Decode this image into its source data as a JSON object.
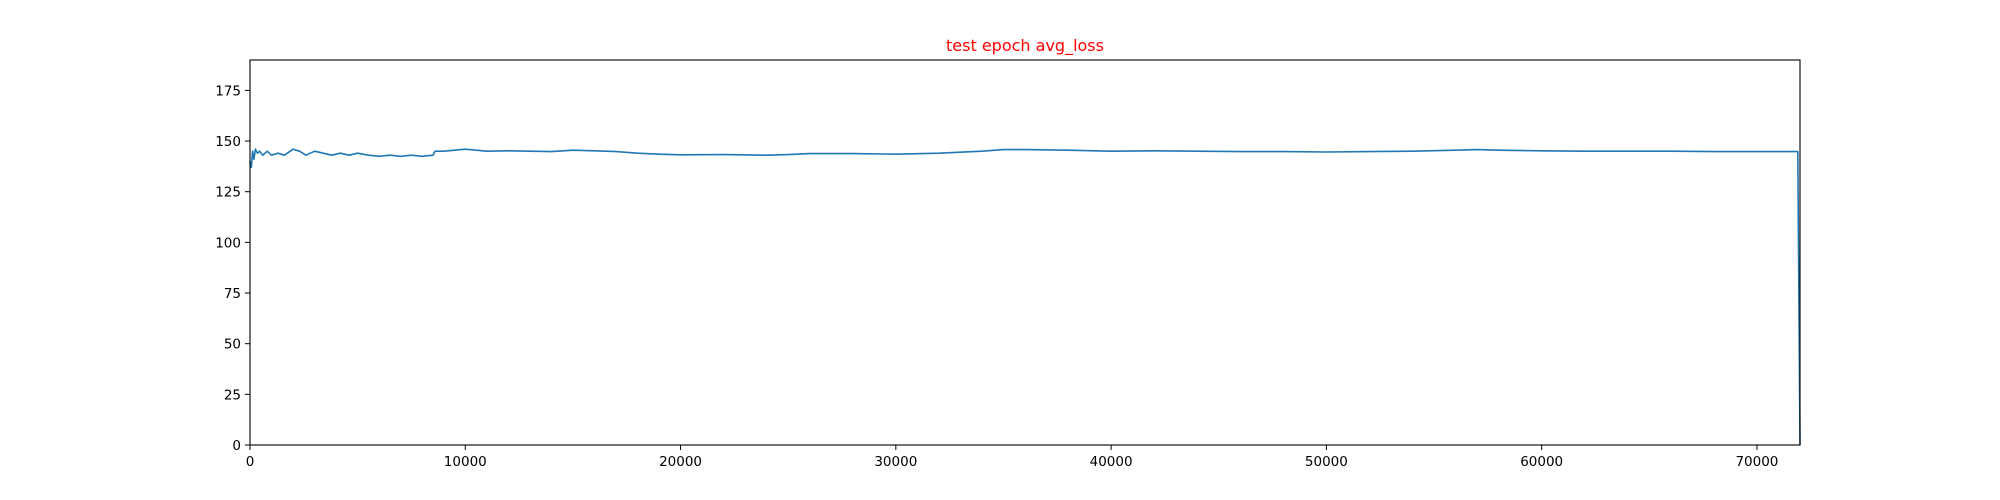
{
  "chart_data": {
    "type": "line",
    "title": "test epoch avg_loss",
    "title_color": "#ff0000",
    "xlabel": "",
    "ylabel": "",
    "xlim": [
      0,
      72000
    ],
    "ylim": [
      0,
      190
    ],
    "x_ticks": [
      0,
      10000,
      20000,
      30000,
      40000,
      50000,
      60000,
      70000
    ],
    "y_ticks": [
      0,
      25,
      50,
      75,
      100,
      125,
      150,
      175
    ],
    "grid": false,
    "legend": "none",
    "series": [
      {
        "color": "#1f77b4",
        "x": [
          0,
          60,
          120,
          180,
          250,
          350,
          450,
          600,
          800,
          1000,
          1300,
          1600,
          2000,
          2300,
          2600,
          3000,
          3400,
          3800,
          4200,
          4600,
          5000,
          5500,
          6000,
          6500,
          7000,
          7500,
          8000,
          8500,
          8600,
          9000,
          9500,
          10000,
          11000,
          12000,
          13000,
          14000,
          15000,
          16000,
          17000,
          18000,
          19000,
          20000,
          22000,
          24000,
          25000,
          26000,
          28000,
          30000,
          32000,
          34000,
          35000,
          36000,
          38000,
          40000,
          42000,
          44000,
          46000,
          48000,
          50000,
          52000,
          54000,
          56000,
          57000,
          58000,
          60000,
          62000,
          64000,
          66000,
          68000,
          70000,
          71900,
          72000
        ],
        "y": [
          140,
          137,
          145,
          141,
          146,
          144,
          145,
          143,
          145,
          143,
          144,
          143,
          146,
          145,
          143,
          145,
          144,
          143,
          144,
          143,
          144,
          143,
          142.5,
          143,
          142.5,
          143,
          142.5,
          143,
          145,
          145,
          145.5,
          146,
          145,
          145.2,
          145,
          144.8,
          145.5,
          145.2,
          144.8,
          144,
          143.5,
          143.2,
          143.3,
          143,
          143.3,
          143.8,
          143.8,
          143.5,
          144,
          145,
          145.8,
          145.8,
          145.5,
          145,
          145.2,
          145,
          144.8,
          144.8,
          144.6,
          144.8,
          145,
          145.5,
          145.8,
          145.5,
          145.2,
          145,
          145,
          145,
          144.8,
          144.8,
          144.8,
          0
        ]
      }
    ]
  }
}
